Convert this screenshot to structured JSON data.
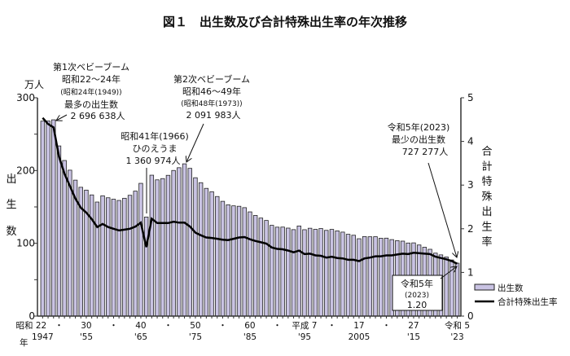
{
  "chart_data": {
    "type": "bar+line",
    "title": "図１　出生数及び合計特殊出生率の年次推移",
    "left_axis": {
      "unit": "万人",
      "label": [
        "出",
        "生",
        "数"
      ],
      "ylim": [
        0,
        300
      ],
      "ticks": [
        0,
        100,
        200,
        300
      ]
    },
    "right_axis": {
      "label": [
        "合",
        "計",
        "特",
        "殊",
        "出",
        "生",
        "率"
      ],
      "ylim": [
        0,
        5
      ],
      "ticks": [
        0,
        1,
        2,
        3,
        4,
        5
      ]
    },
    "x": [
      1947,
      1948,
      1949,
      1950,
      1951,
      1952,
      1953,
      1954,
      1955,
      1956,
      1957,
      1958,
      1959,
      1960,
      1961,
      1962,
      1963,
      1964,
      1965,
      1966,
      1967,
      1968,
      1969,
      1970,
      1971,
      1972,
      1973,
      1974,
      1975,
      1976,
      1977,
      1978,
      1979,
      1980,
      1981,
      1982,
      1983,
      1984,
      1985,
      1986,
      1987,
      1988,
      1989,
      1990,
      1991,
      1992,
      1993,
      1994,
      1995,
      1996,
      1997,
      1998,
      1999,
      2000,
      2001,
      2002,
      2003,
      2004,
      2005,
      2006,
      2007,
      2008,
      2009,
      2010,
      2011,
      2012,
      2013,
      2014,
      2015,
      2016,
      2017,
      2018,
      2019,
      2020,
      2021,
      2022,
      2023
    ],
    "x_tick_labels": [
      {
        "year": 1947,
        "era": "昭和 22",
        "western": "1947"
      },
      {
        "year": 1950,
        "era": "・",
        "western": ""
      },
      {
        "year": 1955,
        "era": "30",
        "western": "'55"
      },
      {
        "year": 1960,
        "era": "・",
        "western": ""
      },
      {
        "year": 1965,
        "era": "40",
        "western": "'65"
      },
      {
        "year": 1970,
        "era": "・",
        "western": ""
      },
      {
        "year": 1975,
        "era": "50",
        "western": "'75"
      },
      {
        "year": 1980,
        "era": "・",
        "western": ""
      },
      {
        "year": 1985,
        "era": "60",
        "western": "'85"
      },
      {
        "year": 1990,
        "era": "・",
        "western": ""
      },
      {
        "year": 1995,
        "era": "平成 7",
        "western": "'95"
      },
      {
        "year": 2000,
        "era": "・",
        "western": ""
      },
      {
        "year": 2005,
        "era": "17",
        "western": "2005"
      },
      {
        "year": 2010,
        "era": "・",
        "western": ""
      },
      {
        "year": 2015,
        "era": "27",
        "western": "'15"
      },
      {
        "year": 2023,
        "era": "令和 5",
        "western": "'23"
      }
    ],
    "x_unit_label": "年",
    "series": [
      {
        "name": "出生数",
        "type": "bar",
        "axis": "left",
        "color": "#c9c3e3",
        "values": [
          267.9,
          268.2,
          269.7,
          233.8,
          213.8,
          200.5,
          186.8,
          177.0,
          173.1,
          166.5,
          156.7,
          165.3,
          162.6,
          160.6,
          158.9,
          161.9,
          166.0,
          171.7,
          182.4,
          136.1,
          193.6,
          187.2,
          188.9,
          193.4,
          200.1,
          203.9,
          209.2,
          203.0,
          190.1,
          183.3,
          175.5,
          170.9,
          164.3,
          157.7,
          152.9,
          151.5,
          150.9,
          149.0,
          143.2,
          138.3,
          134.7,
          131.4,
          124.7,
          122.2,
          122.3,
          120.9,
          118.8,
          123.8,
          118.7,
          120.7,
          119.2,
          120.3,
          117.8,
          119.1,
          117.1,
          115.4,
          112.4,
          111.1,
          106.3,
          109.3,
          109.0,
          109.1,
          107.0,
          107.1,
          105.1,
          103.7,
          103.0,
          100.4,
          100.6,
          97.7,
          94.6,
          91.8,
          86.5,
          84.1,
          81.2,
          77.1,
          72.7
        ]
      },
      {
        "name": "合計特殊出生率",
        "type": "line",
        "axis": "right",
        "color": "#000000",
        "values": [
          4.54,
          4.4,
          4.32,
          3.65,
          3.26,
          2.98,
          2.69,
          2.48,
          2.37,
          2.22,
          2.04,
          2.11,
          2.04,
          2.0,
          1.96,
          1.98,
          2.0,
          2.05,
          2.14,
          1.58,
          2.23,
          2.13,
          2.13,
          2.13,
          2.16,
          2.14,
          2.14,
          2.05,
          1.91,
          1.85,
          1.8,
          1.79,
          1.77,
          1.75,
          1.74,
          1.77,
          1.8,
          1.81,
          1.76,
          1.72,
          1.69,
          1.66,
          1.57,
          1.54,
          1.53,
          1.5,
          1.46,
          1.5,
          1.42,
          1.43,
          1.39,
          1.38,
          1.34,
          1.36,
          1.33,
          1.32,
          1.29,
          1.29,
          1.26,
          1.32,
          1.34,
          1.37,
          1.37,
          1.39,
          1.39,
          1.41,
          1.43,
          1.42,
          1.45,
          1.44,
          1.43,
          1.42,
          1.36,
          1.33,
          1.3,
          1.26,
          1.2
        ]
      }
    ],
    "annotations": {
      "boom1": [
        "第1次ベビーブーム",
        "昭和22～24年",
        "(昭和24年(1949))",
        "最多の出生数",
        "2 696 638人"
      ],
      "boom2": [
        "第2次ベビーブーム",
        "昭和46～49年",
        "(昭和48年(1973))",
        "2 091 983人"
      ],
      "hinoeuma": [
        "昭和41年(1966)",
        "ひのえうま",
        "1 360 974人"
      ],
      "min2023": [
        "令和5年(2023)",
        "最少の出生数",
        "727 277人"
      ],
      "tfr2023": [
        "令和5年",
        "(2023)",
        "1.20"
      ]
    },
    "legend": {
      "placement": "bottom-right",
      "items": [
        "出生数",
        "合計特殊出生率"
      ]
    }
  }
}
